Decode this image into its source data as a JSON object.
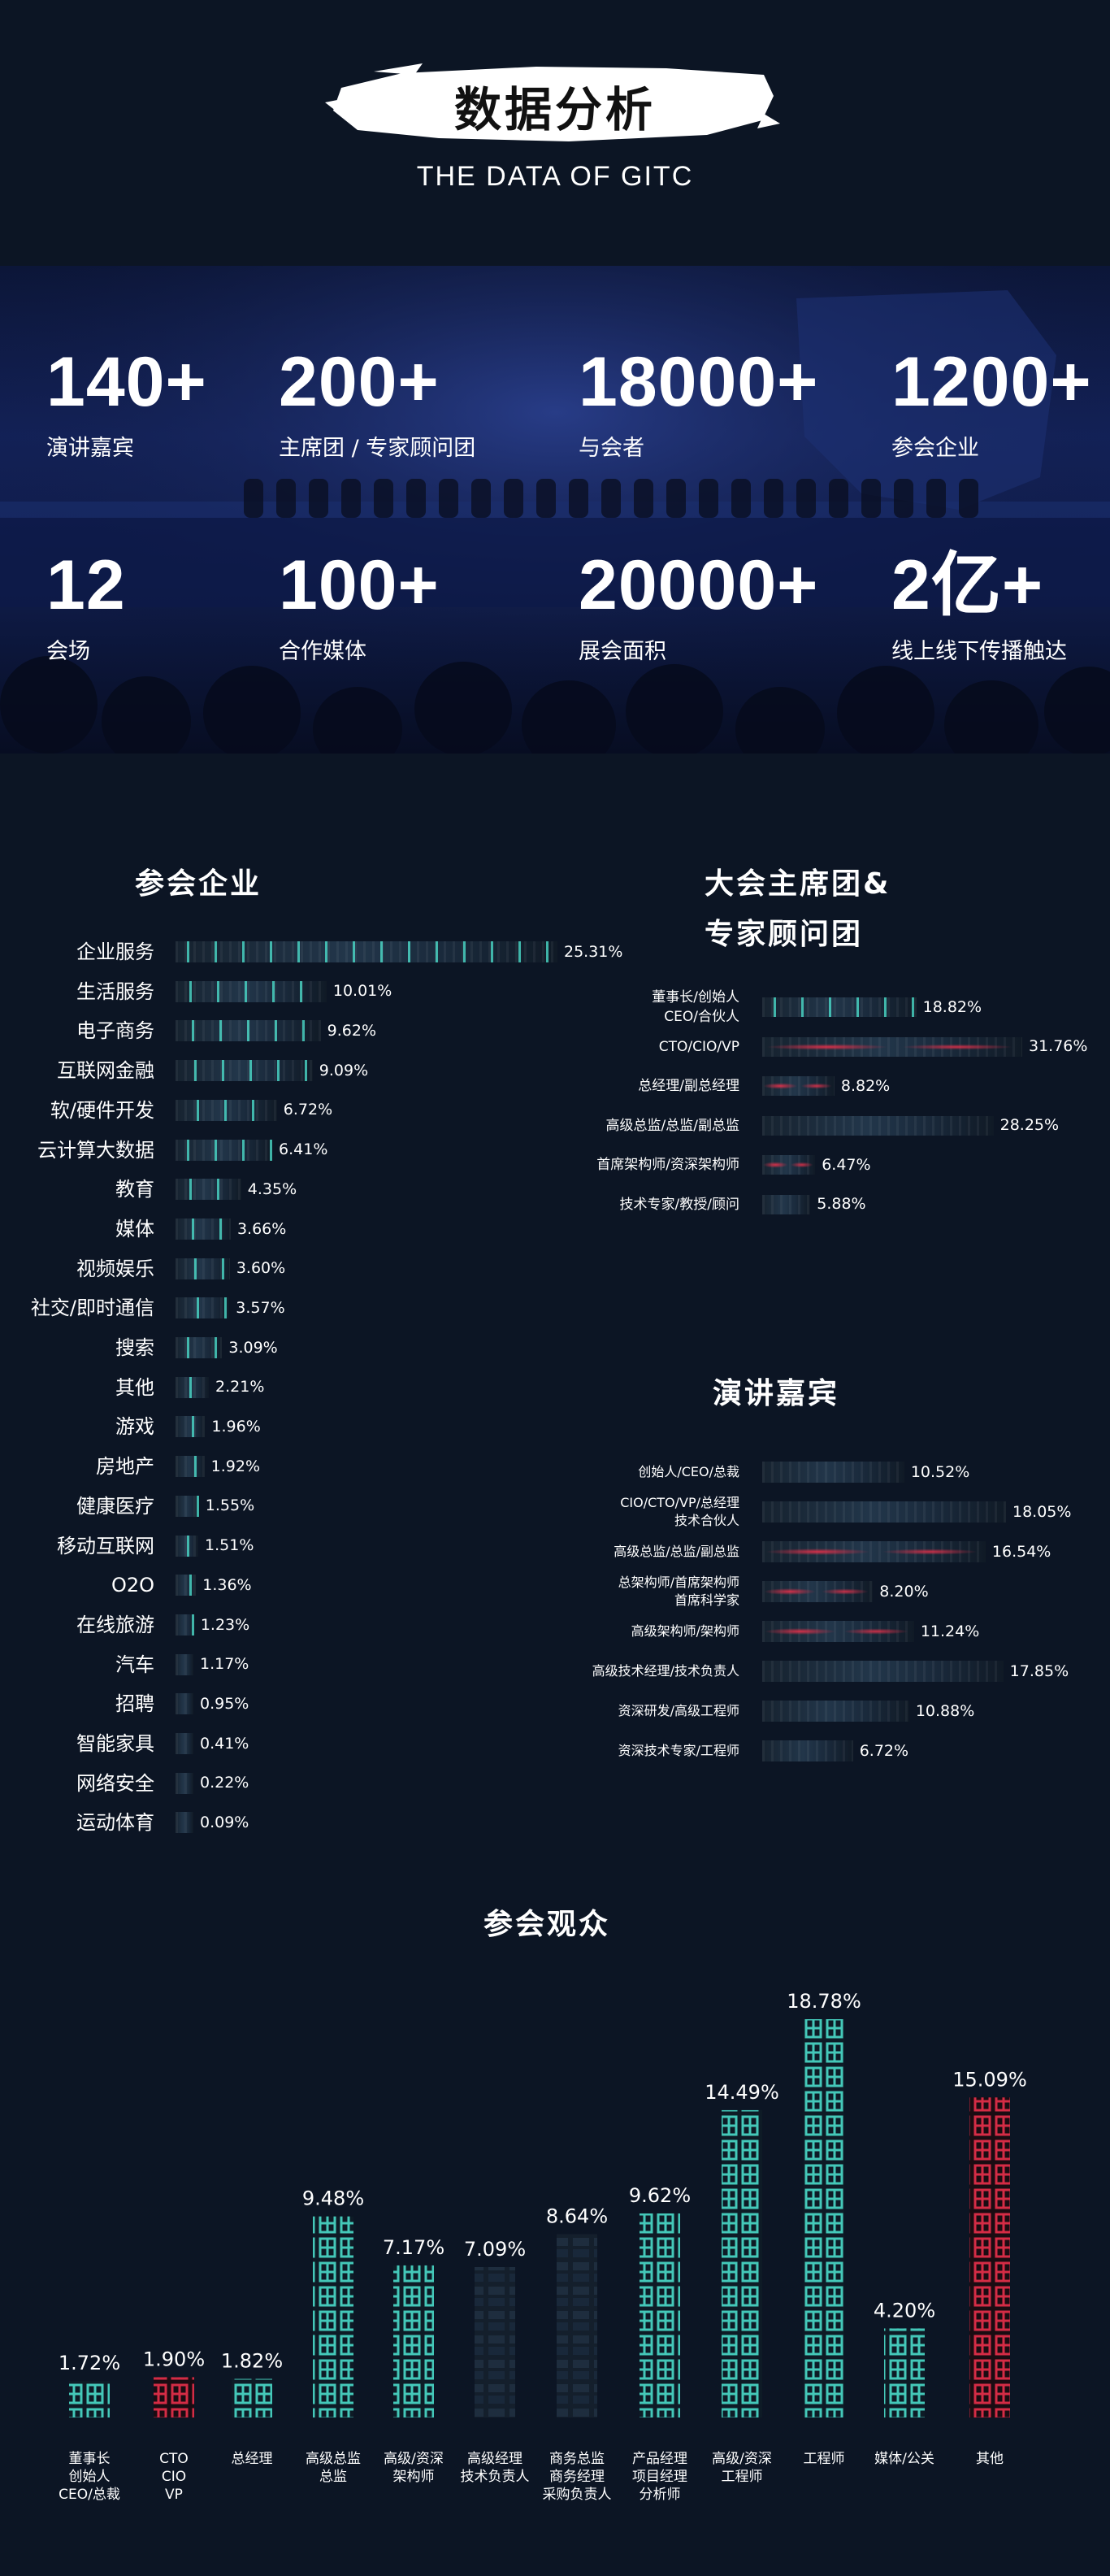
{
  "header": {
    "title": "数据分析",
    "subtitle": "THE DATA OF GITC"
  },
  "banner": {
    "stats": [
      {
        "value": "140+",
        "label": "演讲嘉宾"
      },
      {
        "value": "200+",
        "label": "主席团 / 专家顾问团"
      },
      {
        "value": "18000+",
        "label": "与会者"
      },
      {
        "value": "1200+",
        "label": "参会企业"
      },
      {
        "value": "12",
        "label": "会场"
      },
      {
        "value": "100+",
        "label": "合作媒体"
      },
      {
        "value": "20000+",
        "label": "展会面积"
      },
      {
        "value": "2亿+",
        "label": "线上线下传播触达"
      }
    ]
  },
  "colors": {
    "background": "#0c1524",
    "accent_cyan": "#4ee6d2",
    "accent_red": "#e8304a",
    "bar_dark": "#1e2c3c"
  },
  "chart_data": [
    {
      "type": "bar",
      "orientation": "horizontal",
      "title": "参会企业",
      "categories": [
        "企业服务",
        "生活服务",
        "电子商务",
        "互联网金融",
        "软/硬件开发",
        "云计算大数据",
        "教育",
        "媒体",
        "视频娱乐",
        "社交/即时通信",
        "搜索",
        "其他",
        "游戏",
        "房地产",
        "健康医疗",
        "移动互联网",
        "O2O",
        "在线旅游",
        "汽车",
        "招聘",
        "智能家具",
        "网络安全",
        "运动体育"
      ],
      "values": [
        25.31,
        10.01,
        9.62,
        9.09,
        6.72,
        6.41,
        4.35,
        3.66,
        3.6,
        3.57,
        3.09,
        2.21,
        1.96,
        1.92,
        1.55,
        1.51,
        1.36,
        1.23,
        1.17,
        0.95,
        0.41,
        0.22,
        0.09
      ],
      "value_labels": [
        "25.31%",
        "10.01%",
        "9.62%",
        "9.09%",
        "6.72%",
        "6.41%",
        "4.35%",
        "3.66%",
        "3.60%",
        "3.57%",
        "3.09%",
        "2.21%",
        "1.96%",
        "1.92%",
        "1.55%",
        "1.51%",
        "1.36%",
        "1.23%",
        "1.17%",
        "0.95%",
        "0.41%",
        "0.22%",
        "0.09%"
      ],
      "unit": "%"
    },
    {
      "type": "bar",
      "orientation": "horizontal",
      "title": [
        "大会主席团&",
        "专家顾问团"
      ],
      "categories": [
        [
          "董事长/创始人",
          "CEO/合伙人"
        ],
        [
          "CTO/CIO/VP"
        ],
        [
          "总经理/副总经理"
        ],
        [
          "高级总监/总监/副总监"
        ],
        [
          "首席架构师/资深架构师"
        ],
        [
          "技术专家/教授/顾问"
        ]
      ],
      "values": [
        18.82,
        31.76,
        8.82,
        28.25,
        6.47,
        5.88
      ],
      "value_labels": [
        "18.82%",
        "31.76%",
        "8.82%",
        "28.25%",
        "6.47%",
        "5.88%"
      ],
      "unit": "%"
    },
    {
      "type": "bar",
      "orientation": "horizontal",
      "title": "演讲嘉宾",
      "categories": [
        [
          "创始人/CEO/总裁"
        ],
        [
          "CIO/CTO/VP/总经理",
          "技术合伙人"
        ],
        [
          "高级总监/总监/副总监"
        ],
        [
          "总架构师/首席架构师",
          "首席科学家"
        ],
        [
          "高级架构师/架构师"
        ],
        [
          "高级技术经理/技术负责人"
        ],
        [
          "资深研发/高级工程师"
        ],
        [
          "资深技术专家/工程师"
        ]
      ],
      "values": [
        10.52,
        18.05,
        16.54,
        8.2,
        11.24,
        17.85,
        10.88,
        6.72
      ],
      "value_labels": [
        "10.52%",
        "18.05%",
        "16.54%",
        "8.20%",
        "11.24%",
        "17.85%",
        "10.88%",
        "6.72%"
      ],
      "unit": "%"
    },
    {
      "type": "bar",
      "orientation": "vertical",
      "title": "参会观众",
      "categories": [
        [
          "董事长",
          "创始人",
          "CEO/总裁"
        ],
        [
          "CTO",
          "CIO",
          "VP"
        ],
        [
          "总经理"
        ],
        [
          "高级总监",
          "总监"
        ],
        [
          "高级/资深",
          "架构师"
        ],
        [
          "高级经理",
          "技术负责人"
        ],
        [
          "商务总监",
          "商务经理",
          "采购负责人"
        ],
        [
          "产品经理",
          "项目经理",
          "分析师"
        ],
        [
          "高级/资深",
          "工程师"
        ],
        [
          "工程师"
        ],
        [
          "媒体/公关"
        ],
        [
          "其他"
        ]
      ],
      "values": [
        1.72,
        1.9,
        1.82,
        9.48,
        7.17,
        7.09,
        8.64,
        9.62,
        14.49,
        18.78,
        4.2,
        15.09
      ],
      "value_labels": [
        "1.72%",
        "1.90%",
        "1.82%",
        "9.48%",
        "7.17%",
        "7.09%",
        "8.64%",
        "9.62%",
        "14.49%",
        "18.78%",
        "4.20%",
        "15.09%"
      ],
      "unit": "%"
    }
  ]
}
